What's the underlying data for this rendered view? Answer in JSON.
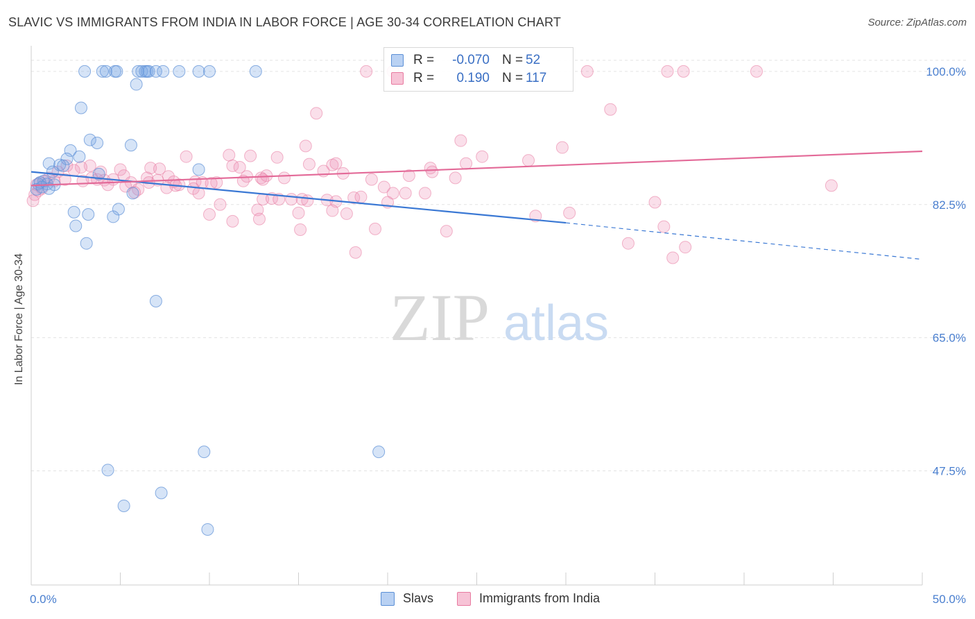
{
  "title": "SLAVIC VS IMMIGRANTS FROM INDIA IN LABOR FORCE | AGE 30-34 CORRELATION CHART",
  "source": "Source: ZipAtlas.com",
  "watermark": {
    "zip": "ZIP",
    "atlas": "atlas"
  },
  "legend": {
    "r_label": "R =",
    "n_label": "N =",
    "rows": [
      {
        "name": "Slavs",
        "r": "-0.070",
        "n": "52"
      },
      {
        "name": "Immigrants from India",
        "r": "0.190",
        "n": "117"
      }
    ]
  },
  "colors": {
    "slavs": "#5b8fd6",
    "slavs_fill": "rgba(120,165,230,0.30)",
    "india": "#e87aa0",
    "india_fill": "rgba(240,150,185,0.30)",
    "slavs_line": "#3a78d4",
    "india_line": "#e36a98",
    "tick": "#4a7fcf",
    "grid": "#e3e3e3"
  },
  "chart_data": {
    "type": "scatter",
    "title": "SLAVIC VS IMMIGRANTS FROM INDIA IN LABOR FORCE | AGE 30-34 CORRELATION CHART",
    "xlabel": "",
    "ylabel": "In Labor Force | Age 30-34",
    "xlim": [
      0,
      50
    ],
    "ylim": [
      32.5,
      103
    ],
    "x_tick_labels": [
      "0.0%",
      "50.0%"
    ],
    "y_ticks": [
      47.5,
      65.0,
      82.5,
      100.0
    ],
    "y_tick_labels": [
      "47.5%",
      "65.0%",
      "82.5%",
      "100.0%"
    ],
    "grid": true,
    "legend_placement": "top-center",
    "series": [
      {
        "name": "Slavs",
        "trend": {
          "x0": 0,
          "y0": 86.8,
          "x1": 30,
          "y1": 80.1,
          "dash_x1": 50,
          "dash_y1": 75.3
        },
        "points": [
          [
            3.0,
            100
          ],
          [
            4.0,
            100
          ],
          [
            4.2,
            100
          ],
          [
            4.7,
            100
          ],
          [
            4.8,
            100
          ],
          [
            6.0,
            100
          ],
          [
            6.2,
            100
          ],
          [
            6.4,
            100
          ],
          [
            6.5,
            100
          ],
          [
            6.6,
            100
          ],
          [
            7.0,
            100
          ],
          [
            7.4,
            100
          ],
          [
            8.3,
            100
          ],
          [
            9.4,
            100
          ],
          [
            10.0,
            100
          ],
          [
            12.6,
            100
          ],
          [
            5.9,
            98.3
          ],
          [
            2.8,
            95.2
          ],
          [
            3.3,
            91.0
          ],
          [
            3.7,
            90.6
          ],
          [
            5.6,
            90.3
          ],
          [
            2.2,
            89.6
          ],
          [
            2.7,
            88.8
          ],
          [
            2.0,
            88.5
          ],
          [
            1.0,
            87.9
          ],
          [
            1.6,
            87.7
          ],
          [
            1.8,
            87.6
          ],
          [
            9.4,
            87.1
          ],
          [
            1.2,
            86.8
          ],
          [
            3.8,
            86.5
          ],
          [
            0.5,
            85.4
          ],
          [
            0.7,
            85.6
          ],
          [
            0.4,
            85.2
          ],
          [
            0.9,
            85.2
          ],
          [
            1.3,
            85.1
          ],
          [
            0.3,
            84.5
          ],
          [
            0.6,
            84.8
          ],
          [
            1.0,
            84.6
          ],
          [
            2.4,
            81.5
          ],
          [
            3.2,
            81.2
          ],
          [
            4.9,
            81.9
          ],
          [
            4.6,
            80.9
          ],
          [
            5.7,
            84.0
          ],
          [
            2.5,
            79.7
          ],
          [
            3.1,
            77.4
          ],
          [
            7.0,
            69.8
          ],
          [
            9.7,
            50.0
          ],
          [
            19.5,
            50.0
          ],
          [
            4.3,
            47.6
          ],
          [
            7.3,
            44.6
          ],
          [
            5.2,
            42.9
          ],
          [
            9.9,
            39.8
          ]
        ]
      },
      {
        "name": "Immigrants from India",
        "trend": {
          "x0": 0,
          "y0": 85.0,
          "x1": 50,
          "y1": 89.5
        },
        "points": [
          [
            18.8,
            100
          ],
          [
            20.3,
            100
          ],
          [
            31.2,
            100
          ],
          [
            35.7,
            100
          ],
          [
            36.6,
            100
          ],
          [
            40.7,
            100
          ],
          [
            16.0,
            94.5
          ],
          [
            32.5,
            95.0
          ],
          [
            24.1,
            90.9
          ],
          [
            15.4,
            90.2
          ],
          [
            29.8,
            90.0
          ],
          [
            8.7,
            88.8
          ],
          [
            11.1,
            89.0
          ],
          [
            12.3,
            88.9
          ],
          [
            13.8,
            88.7
          ],
          [
            25.3,
            88.8
          ],
          [
            27.9,
            88.3
          ],
          [
            24.4,
            87.9
          ],
          [
            15.6,
            87.8
          ],
          [
            16.9,
            87.7
          ],
          [
            17.1,
            87.9
          ],
          [
            22.4,
            87.3
          ],
          [
            11.3,
            87.6
          ],
          [
            11.7,
            87.4
          ],
          [
            3.3,
            87.6
          ],
          [
            2.8,
            87.4
          ],
          [
            6.7,
            87.3
          ],
          [
            5.0,
            87.1
          ],
          [
            7.2,
            87.2
          ],
          [
            2.0,
            87.6
          ],
          [
            2.4,
            87.0
          ],
          [
            1.5,
            86.8
          ],
          [
            16.4,
            86.9
          ],
          [
            17.5,
            86.6
          ],
          [
            22.5,
            86.8
          ],
          [
            21.2,
            86.3
          ],
          [
            5.2,
            86.3
          ],
          [
            6.5,
            86.0
          ],
          [
            7.7,
            86.2
          ],
          [
            12.1,
            86.2
          ],
          [
            12.9,
            86.0
          ],
          [
            13.2,
            86.3
          ],
          [
            14.2,
            86.0
          ],
          [
            19.1,
            85.8
          ],
          [
            23.8,
            86.0
          ],
          [
            3.4,
            86.0
          ],
          [
            3.7,
            85.8
          ],
          [
            4.1,
            85.7
          ],
          [
            4.6,
            85.8
          ],
          [
            5.6,
            85.4
          ],
          [
            6.6,
            85.4
          ],
          [
            7.1,
            85.7
          ],
          [
            8.0,
            85.5
          ],
          [
            8.3,
            85.1
          ],
          [
            9.2,
            85.5
          ],
          [
            10.4,
            85.4
          ],
          [
            9.6,
            85.4
          ],
          [
            10.1,
            85.3
          ],
          [
            11.9,
            85.6
          ],
          [
            13.0,
            85.8
          ],
          [
            1.0,
            86.0
          ],
          [
            0.8,
            85.6
          ],
          [
            0.5,
            85.4
          ],
          [
            0.3,
            85.1
          ],
          [
            1.3,
            85.6
          ],
          [
            4.3,
            85.1
          ],
          [
            5.3,
            84.9
          ],
          [
            6.0,
            84.5
          ],
          [
            7.6,
            84.7
          ],
          [
            8.1,
            85.0
          ],
          [
            9.1,
            84.6
          ],
          [
            19.8,
            84.8
          ],
          [
            20.3,
            84.0
          ],
          [
            5.8,
            84.1
          ],
          [
            9.4,
            84.0
          ],
          [
            0.4,
            84.3
          ],
          [
            0.2,
            83.8
          ],
          [
            13.0,
            83.2
          ],
          [
            13.5,
            83.3
          ],
          [
            13.9,
            83.2
          ],
          [
            14.6,
            83.2
          ],
          [
            15.2,
            83.2
          ],
          [
            15.5,
            83.0
          ],
          [
            16.6,
            83.1
          ],
          [
            17.1,
            82.9
          ],
          [
            18.1,
            83.4
          ],
          [
            18.5,
            83.5
          ],
          [
            20.0,
            82.8
          ],
          [
            35.0,
            82.8
          ],
          [
            10.6,
            82.5
          ],
          [
            12.7,
            81.8
          ],
          [
            15.0,
            81.4
          ],
          [
            16.9,
            81.7
          ],
          [
            17.7,
            81.3
          ],
          [
            10.0,
            81.2
          ],
          [
            12.8,
            80.6
          ],
          [
            11.3,
            80.3
          ],
          [
            28.3,
            81.0
          ],
          [
            30.2,
            81.4
          ],
          [
            15.1,
            79.2
          ],
          [
            19.3,
            79.3
          ],
          [
            23.3,
            79.0
          ],
          [
            35.5,
            79.6
          ],
          [
            33.5,
            77.4
          ],
          [
            36.7,
            76.9
          ],
          [
            18.2,
            76.2
          ],
          [
            36.0,
            75.5
          ],
          [
            44.9,
            85.0
          ],
          [
            21.0,
            84.0
          ],
          [
            22.1,
            84.0
          ],
          [
            2.9,
            85.6
          ],
          [
            3.9,
            86.8
          ],
          [
            1.9,
            85.8
          ],
          [
            0.6,
            84.6
          ],
          [
            0.1,
            83.0
          ]
        ]
      }
    ]
  }
}
